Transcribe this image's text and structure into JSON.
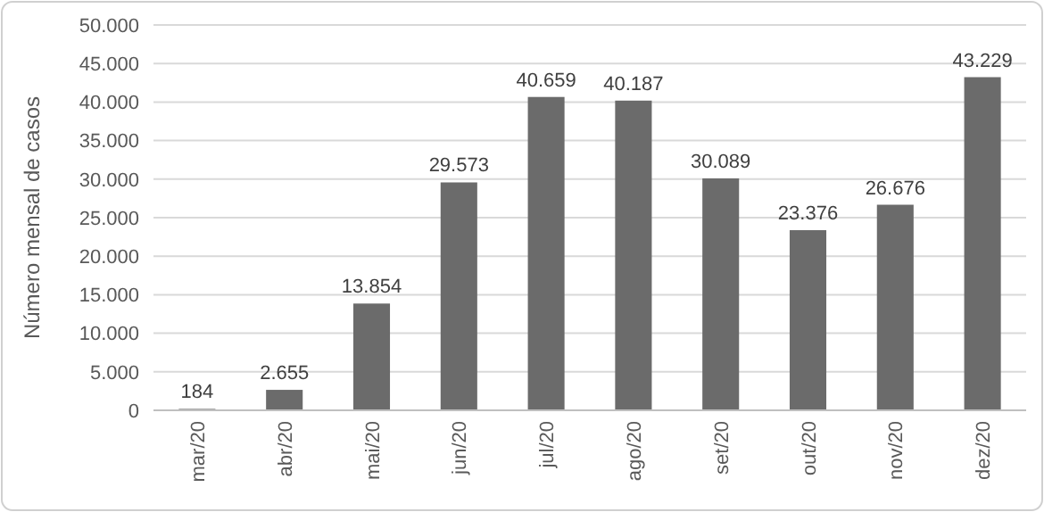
{
  "chart_data": {
    "type": "bar",
    "ylabel": "Número mensal de casos",
    "categories": [
      "mar/20",
      "abr/20",
      "mai/20",
      "jun/20",
      "jul/20",
      "ago/20",
      "set/20",
      "out/20",
      "nov/20",
      "dez/20"
    ],
    "values": [
      184,
      2655,
      13854,
      29573,
      40659,
      40187,
      30089,
      23376,
      26676,
      43229
    ],
    "value_labels": [
      "184",
      "2.655",
      "13.854",
      "29.573",
      "40.659",
      "40.187",
      "30.089",
      "23.376",
      "26.676",
      "43.229"
    ],
    "color": "#6b6b6b",
    "ylim": [
      0,
      50000
    ],
    "yticks": [
      0,
      {
        "value": 5000,
        "label": "5.000"
      },
      {
        "value": 10000,
        "label": "10.000"
      },
      {
        "value": 15000,
        "label": "15.000"
      },
      {
        "value": 20000,
        "label": "20.000"
      },
      {
        "value": 25000,
        "label": "25.000"
      },
      {
        "value": 30000,
        "label": "30.000"
      },
      {
        "value": 35000,
        "label": "35.000"
      },
      {
        "value": 40000,
        "label": "40.000"
      },
      {
        "value": 45000,
        "label": "45.000"
      },
      {
        "value": 50000,
        "label": "50.000"
      }
    ],
    "grid": "y"
  }
}
